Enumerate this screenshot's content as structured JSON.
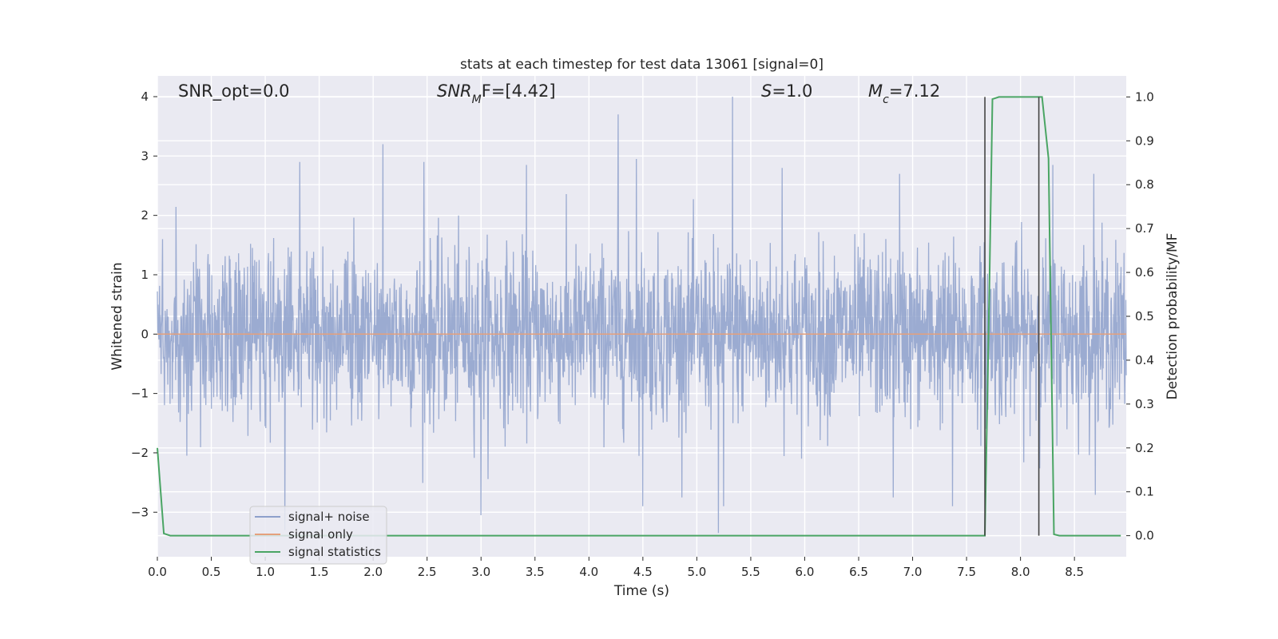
{
  "chart_data": {
    "type": "line",
    "title": "stats at each timestep for test data 13061 [signal=0]",
    "xlabel": "Time (s)",
    "ylabel": "Whitened strain",
    "y2label": "Detection probability/MF",
    "xlim": [
      0.0,
      8.98
    ],
    "ylim": [
      -3.75,
      4.35
    ],
    "y2lim": [
      -0.048,
      1.048
    ],
    "x_ticks": [
      0.0,
      0.5,
      1.0,
      1.5,
      2.0,
      2.5,
      3.0,
      3.5,
      4.0,
      4.5,
      5.0,
      5.5,
      6.0,
      6.5,
      7.0,
      7.5,
      8.0,
      8.5
    ],
    "x_tick_labels": [
      "0.0",
      "0.5",
      "1.0",
      "1.5",
      "2.0",
      "2.5",
      "3.0",
      "3.5",
      "4.0",
      "4.5",
      "5.0",
      "5.5",
      "6.0",
      "6.5",
      "7.0",
      "7.5",
      "8.0",
      "8.5"
    ],
    "y_ticks": [
      -3,
      -2,
      -1,
      0,
      1,
      2,
      3,
      4
    ],
    "y_tick_labels": [
      "−3",
      "−2",
      "−1",
      "0",
      "1",
      "2",
      "3",
      "4"
    ],
    "y2_ticks": [
      0.0,
      0.1,
      0.2,
      0.3,
      0.4,
      0.5,
      0.6,
      0.7,
      0.8,
      0.9,
      1.0
    ],
    "y2_tick_labels": [
      "0.0",
      "0.1",
      "0.2",
      "0.3",
      "0.4",
      "0.5",
      "0.6",
      "0.7",
      "0.8",
      "0.9",
      "1.0"
    ],
    "grid": true,
    "legend_position": "lower-left",
    "annotations": [
      {
        "id": "snr-opt",
        "prefix": "",
        "italic": "",
        "sub": "",
        "suffix": "SNR_opt=0.0"
      },
      {
        "id": "snr-mf",
        "prefix": "",
        "italic": "SNR",
        "sub": "M",
        "suffix": "F=[4.42]"
      },
      {
        "id": "s-value",
        "prefix": "",
        "italic": "S",
        "sub": "",
        "suffix": "=1.0"
      },
      {
        "id": "mc-value",
        "prefix": "",
        "italic": "M",
        "sub": "c",
        "suffix": "=7.12"
      }
    ],
    "series": [
      {
        "name": "signal+ noise",
        "axis": "left",
        "color": "#8da0cb",
        "kind": "noise",
        "x_range": [
          0.0,
          8.98
        ],
        "peaks": [
          {
            "x": 1.32,
            "y": 2.9
          },
          {
            "x": 2.09,
            "y": 3.2
          },
          {
            "x": 2.47,
            "y": 2.9
          },
          {
            "x": 3.42,
            "y": 2.85
          },
          {
            "x": 4.27,
            "y": 3.7
          },
          {
            "x": 4.44,
            "y": 2.95
          },
          {
            "x": 5.33,
            "y": 4.0
          },
          {
            "x": 5.79,
            "y": 2.8
          },
          {
            "x": 6.88,
            "y": 2.7
          },
          {
            "x": 8.3,
            "y": 2.85
          },
          {
            "x": 8.68,
            "y": 2.7
          }
        ],
        "troughs": [
          {
            "x": 1.18,
            "y": -3.3
          },
          {
            "x": 3.0,
            "y": -3.05
          },
          {
            "x": 4.5,
            "y": -2.9
          },
          {
            "x": 5.2,
            "y": -3.35
          },
          {
            "x": 5.25,
            "y": -2.9
          },
          {
            "x": 6.82,
            "y": -2.75
          },
          {
            "x": 7.37,
            "y": -2.9
          }
        ]
      },
      {
        "name": "signal only",
        "axis": "left",
        "color": "#e5a07c",
        "x": [
          0.0,
          8.98
        ],
        "y": [
          0.0,
          0.0
        ]
      },
      {
        "name": "signal statistics",
        "axis": "right",
        "color": "#4aa564",
        "x": [
          0.0,
          0.06,
          0.12,
          7.67,
          7.71,
          7.74,
          7.8,
          8.2,
          8.26,
          8.31,
          8.36,
          8.93
        ],
        "y": [
          0.2,
          0.005,
          0.0,
          0.0,
          0.55,
          0.995,
          1.0,
          1.0,
          0.86,
          0.003,
          0.0,
          0.0
        ]
      }
    ],
    "vertical_lines": [
      {
        "x": 7.67,
        "color": "#444444",
        "y2": [
          0.0,
          1.0
        ]
      },
      {
        "x": 8.17,
        "color": "#444444",
        "y2": [
          0.0,
          1.0
        ]
      }
    ]
  }
}
